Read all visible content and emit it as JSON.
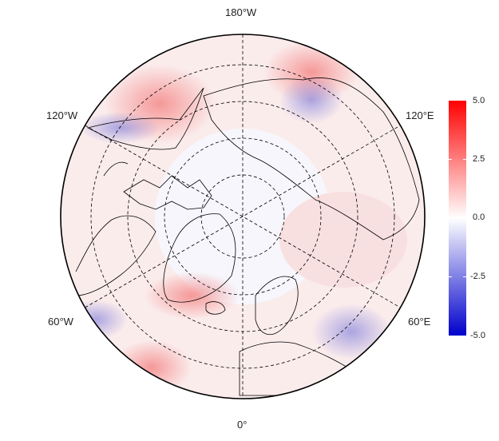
{
  "map": {
    "projection": "north-polar-stereographic",
    "lon_labels": {
      "top": "180°W",
      "bottom": "0°",
      "upper_left": "120°W",
      "upper_right": "120°E",
      "lower_left": "60°W",
      "lower_right": "60°E"
    },
    "graticule": "dashed",
    "colors": {
      "negative": "#0000cc",
      "neutral": "#ffffff",
      "positive": "#ff0000",
      "coastline": "#000000",
      "graticule": "#000000"
    }
  },
  "colorbar": {
    "min": -5.0,
    "max": 5.0,
    "ticks": [
      "5.0",
      "2.5",
      "0.0",
      "-2.5",
      "-5.0"
    ],
    "tick_values": [
      5.0,
      2.5,
      0.0,
      -2.5,
      -5.0
    ]
  }
}
